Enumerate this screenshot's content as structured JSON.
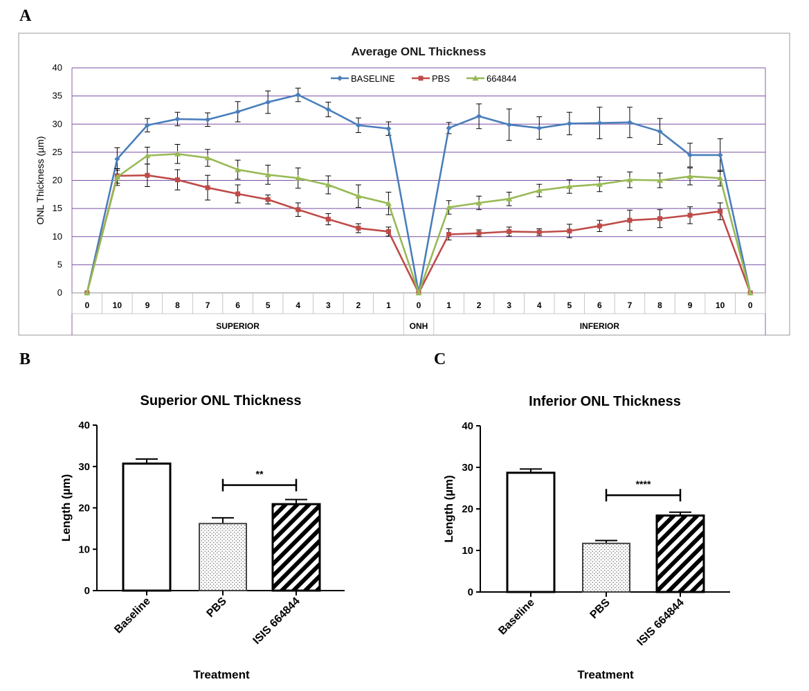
{
  "chart_data": [
    {
      "panel": "A",
      "type": "line",
      "title": "Average ONL Thickness",
      "xlabel": "",
      "ylabel": "ONL Thickness (µm)",
      "ylim": [
        0,
        40
      ],
      "yticks": [
        "0",
        "5",
        "10",
        "15",
        "20",
        "25",
        "30",
        "35",
        "40"
      ],
      "categories": [
        "0",
        "10",
        "9",
        "8",
        "7",
        "6",
        "5",
        "4",
        "3",
        "2",
        "1",
        "0",
        "1",
        "2",
        "3",
        "4",
        "5",
        "6",
        "7",
        "8",
        "9",
        "10",
        "0"
      ],
      "groups": [
        {
          "label": "SUPERIOR",
          "start": 0,
          "end": 10
        },
        {
          "label": "ONH",
          "start": 11,
          "end": 11
        },
        {
          "label": "INFERIOR",
          "start": 12,
          "end": 22
        }
      ],
      "legend_position": "top-center",
      "series": [
        {
          "name": "BASELINE",
          "color": "#4a7ebb",
          "marker": "diamond",
          "values": [
            0,
            23.8,
            29.8,
            30.9,
            30.8,
            32.2,
            33.9,
            35.2,
            32.6,
            29.8,
            29.2,
            0,
            29.3,
            31.4,
            29.9,
            29.3,
            30.1,
            30.2,
            30.3,
            28.7,
            24.5,
            24.5,
            0
          ],
          "errors": [
            0,
            2.0,
            1.2,
            1.2,
            1.2,
            1.8,
            2.0,
            1.2,
            1.3,
            1.3,
            1.2,
            0,
            1.0,
            2.2,
            2.8,
            2.0,
            2.0,
            2.8,
            2.7,
            2.3,
            2.1,
            2.9,
            0
          ]
        },
        {
          "name": "PBS",
          "color": "#be4b48",
          "marker": "square",
          "values": [
            0,
            20.8,
            20.9,
            20.1,
            18.7,
            17.6,
            16.6,
            14.8,
            13.1,
            11.5,
            10.9,
            0,
            10.4,
            10.6,
            10.9,
            10.8,
            11.0,
            11.9,
            12.9,
            13.2,
            13.8,
            14.5,
            0
          ],
          "errors": [
            0,
            1.3,
            2.0,
            1.8,
            2.2,
            1.6,
            0.8,
            1.2,
            1.0,
            0.8,
            0.8,
            0,
            1.0,
            0.6,
            0.8,
            0.6,
            1.2,
            1.0,
            1.8,
            1.6,
            1.5,
            1.5,
            0
          ]
        },
        {
          "name": "664844",
          "color": "#98b954",
          "marker": "triangle",
          "values": [
            0,
            20.6,
            24.4,
            24.7,
            24.0,
            21.9,
            21.0,
            20.4,
            19.2,
            17.2,
            15.9,
            0,
            15.2,
            16.0,
            16.7,
            18.2,
            18.9,
            19.3,
            20.1,
            20.0,
            20.7,
            20.4,
            0
          ],
          "errors": [
            0,
            1.5,
            1.5,
            1.7,
            1.5,
            1.7,
            1.7,
            1.8,
            1.6,
            2.0,
            2.0,
            0,
            1.2,
            1.2,
            1.2,
            1.1,
            1.2,
            1.3,
            1.4,
            1.3,
            1.5,
            1.4,
            0
          ]
        }
      ]
    },
    {
      "panel": "B",
      "type": "bar",
      "title": "Superior ONL Thickness",
      "xlabel": "Treatment",
      "ylabel": "Length (µm)",
      "ylim": [
        0,
        40
      ],
      "yticks": [
        "0",
        "10",
        "20",
        "30",
        "40"
      ],
      "categories": [
        "Baseline",
        "PBS",
        "ISIS 664844"
      ],
      "values": [
        30.7,
        16.2,
        20.9
      ],
      "errors": [
        1.1,
        1.4,
        1.1
      ],
      "fills": [
        "open",
        "dotted",
        "hatched"
      ],
      "significance": {
        "from": 1,
        "to": 2,
        "label": "**",
        "level": 25.5
      }
    },
    {
      "panel": "C",
      "type": "bar",
      "title": "Inferior ONL Thickness",
      "xlabel": "Treatment",
      "ylabel": "Length (µm)",
      "ylim": [
        0,
        40
      ],
      "yticks": [
        "0",
        "10",
        "20",
        "30",
        "40"
      ],
      "categories": [
        "Baseline",
        "PBS",
        "ISIS 664844"
      ],
      "values": [
        28.7,
        11.7,
        18.4
      ],
      "errors": [
        0.9,
        0.7,
        0.8
      ],
      "fills": [
        "open",
        "dotted",
        "hatched"
      ],
      "significance": {
        "from": 1,
        "to": 2,
        "label": "****",
        "level": 23.3
      }
    }
  ],
  "panel_labels": {
    "a": "A",
    "b": "B",
    "c": "C"
  }
}
